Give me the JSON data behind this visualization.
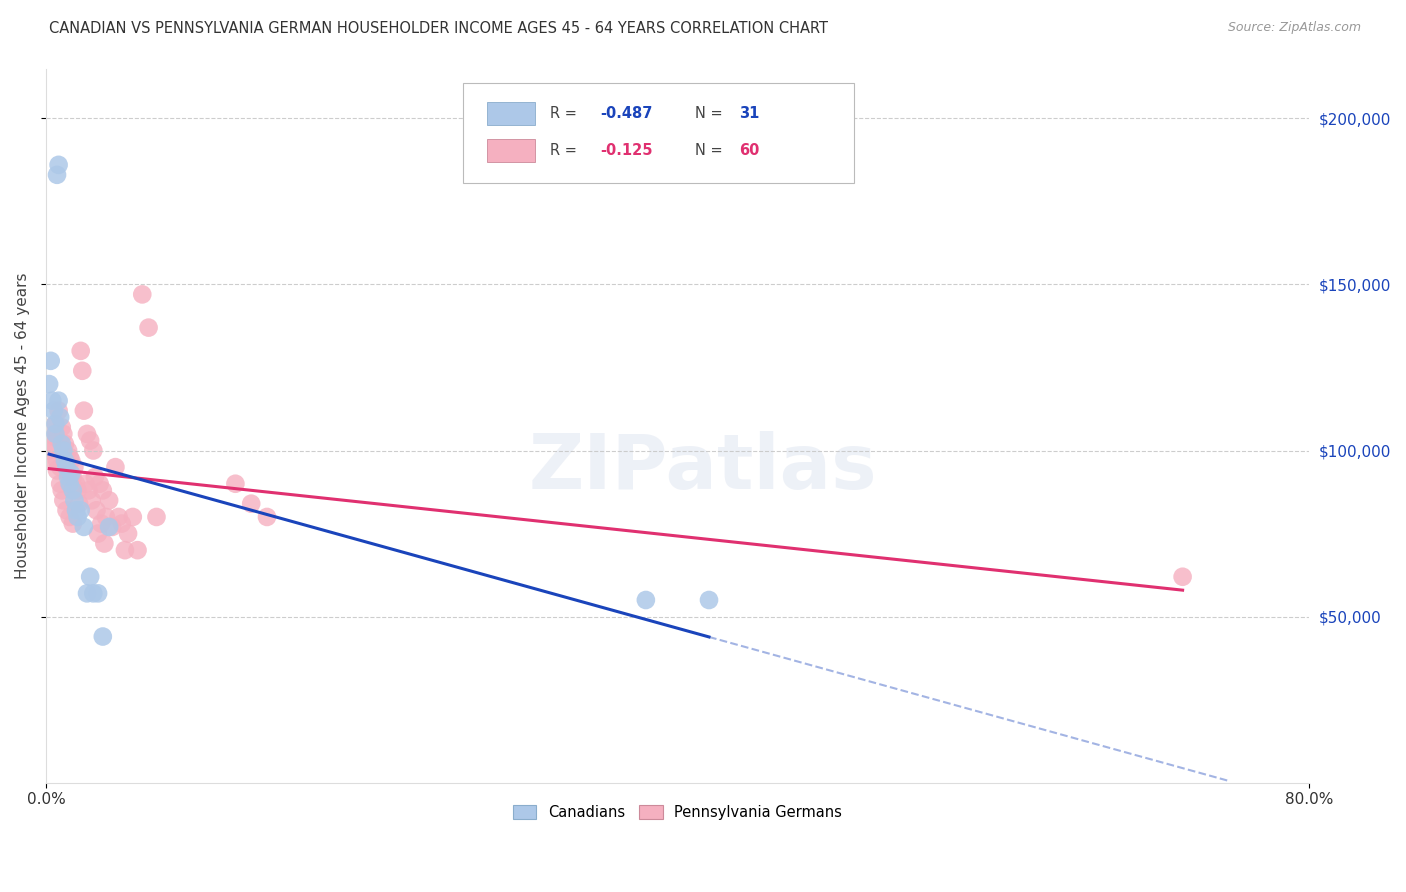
{
  "title": "CANADIAN VS PENNSYLVANIA GERMAN HOUSEHOLDER INCOME AGES 45 - 64 YEARS CORRELATION CHART",
  "source": "Source: ZipAtlas.com",
  "ylabel": "Householder Income Ages 45 - 64 years",
  "ytick_values": [
    50000,
    100000,
    150000,
    200000
  ],
  "ytick_labels": [
    "$50,000",
    "$100,000",
    "$150,000",
    "$200,000"
  ],
  "ylim": [
    0,
    215000
  ],
  "xlim": [
    0.0,
    0.8
  ],
  "xtick_values": [
    0.0,
    0.8
  ],
  "xtick_labels": [
    "0.0%",
    "80.0%"
  ],
  "legend_bottom_labels": [
    "Canadians",
    "Pennsylvania Germans"
  ],
  "canadians_R": "-0.487",
  "canadians_N": "31",
  "penn_R": "-0.125",
  "penn_N": "60",
  "canadians_fill_color": "#adc8e8",
  "penn_fill_color": "#f5b0c0",
  "canadians_line_color": "#1a44bb",
  "penn_line_color": "#e03070",
  "background_color": "#ffffff",
  "grid_color": "#c8c8c8",
  "title_color": "#333333",
  "source_color": "#999999",
  "yaxis_label_color": "#444444",
  "yright_tick_color": "#1a44bb",
  "watermark_text": "ZIPatlas",
  "canadians_x": [
    0.002,
    0.003,
    0.004,
    0.005,
    0.006,
    0.006,
    0.007,
    0.008,
    0.008,
    0.009,
    0.01,
    0.011,
    0.012,
    0.013,
    0.014,
    0.015,
    0.016,
    0.017,
    0.018,
    0.019,
    0.02,
    0.022,
    0.024,
    0.026,
    0.028,
    0.03,
    0.033,
    0.036,
    0.04,
    0.38,
    0.42
  ],
  "canadians_y": [
    120000,
    127000,
    115000,
    112000,
    108000,
    105000,
    183000,
    186000,
    115000,
    110000,
    102000,
    100000,
    97000,
    95000,
    92000,
    90000,
    93000,
    88000,
    85000,
    82000,
    80000,
    82000,
    77000,
    57000,
    62000,
    57000,
    57000,
    44000,
    77000,
    55000,
    55000
  ],
  "penn_x": [
    0.002,
    0.003,
    0.004,
    0.005,
    0.006,
    0.007,
    0.007,
    0.008,
    0.009,
    0.009,
    0.01,
    0.01,
    0.011,
    0.011,
    0.012,
    0.013,
    0.013,
    0.014,
    0.015,
    0.015,
    0.016,
    0.017,
    0.017,
    0.018,
    0.019,
    0.02,
    0.021,
    0.022,
    0.023,
    0.024,
    0.025,
    0.026,
    0.027,
    0.028,
    0.029,
    0.03,
    0.031,
    0.032,
    0.033,
    0.034,
    0.035,
    0.036,
    0.037,
    0.038,
    0.04,
    0.042,
    0.044,
    0.046,
    0.048,
    0.05,
    0.052,
    0.055,
    0.058,
    0.061,
    0.065,
    0.07,
    0.12,
    0.13,
    0.14,
    0.72
  ],
  "penn_y": [
    100000,
    107000,
    102000,
    97000,
    104000,
    97000,
    94000,
    112000,
    95000,
    90000,
    107000,
    88000,
    105000,
    85000,
    102000,
    95000,
    82000,
    100000,
    98000,
    80000,
    97000,
    92000,
    78000,
    95000,
    90000,
    88000,
    84000,
    130000,
    124000,
    112000,
    90000,
    105000,
    88000,
    103000,
    85000,
    100000,
    92000,
    82000,
    75000,
    90000,
    78000,
    88000,
    72000,
    80000,
    85000,
    77000,
    95000,
    80000,
    78000,
    70000,
    75000,
    80000,
    70000,
    147000,
    137000,
    80000,
    90000,
    84000,
    80000,
    62000
  ]
}
